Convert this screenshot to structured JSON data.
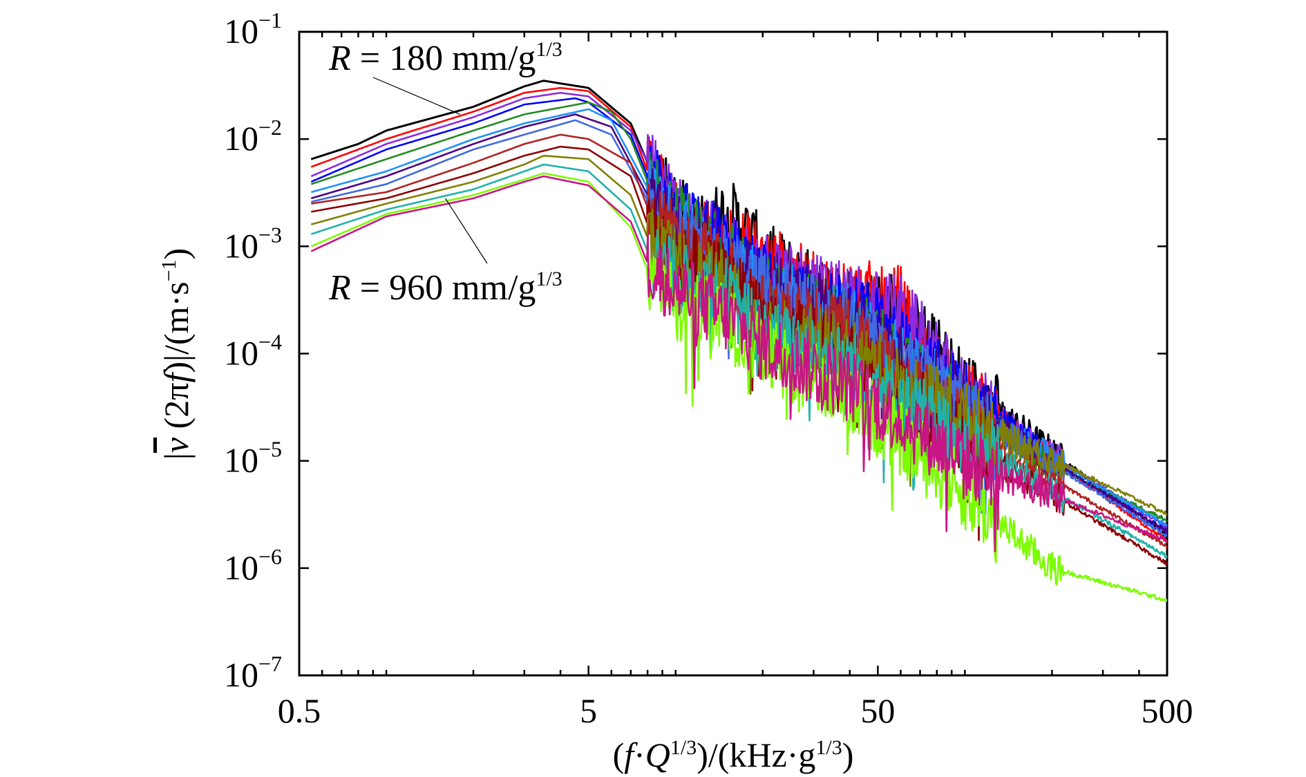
{
  "chart_data": {
    "type": "line",
    "title": "",
    "xlabel": {
      "open": "(",
      "f": "f",
      "dot": "·",
      "Q": "Q",
      "exp1": "1/3",
      "mid": ")/(kHz·g",
      "exp2": "1/3",
      "close": ")"
    },
    "ylabel": {
      "bar_left": "|",
      "v": "v",
      "mid": " (2π",
      "f": "f",
      "mid2": ")|/(m·s",
      "exp": "−1",
      "close": ")"
    },
    "xscale": "log",
    "yscale": "log",
    "xlim": [
      0.5,
      500
    ],
    "ylim": [
      1e-07,
      0.1
    ],
    "x_ticks": [
      {
        "value": 0.5,
        "label": "0.5"
      },
      {
        "value": 5,
        "label": "5"
      },
      {
        "value": 50,
        "label": "50"
      },
      {
        "value": 500,
        "label": "500"
      }
    ],
    "y_ticks": [
      {
        "value": 1e-07,
        "base": "10",
        "exp": "−7"
      },
      {
        "value": 1e-06,
        "base": "10",
        "exp": "−6"
      },
      {
        "value": 1e-05,
        "base": "10",
        "exp": "−5"
      },
      {
        "value": 0.0001,
        "base": "10",
        "exp": "−4"
      },
      {
        "value": 0.001,
        "base": "10",
        "exp": "−3"
      },
      {
        "value": 0.01,
        "base": "10",
        "exp": "−2"
      },
      {
        "value": 0.1,
        "base": "10",
        "exp": "−1"
      }
    ],
    "grid": false,
    "annotations": [
      {
        "R": "R",
        "text": " = 180 mm/g",
        "exp": "1/3",
        "points_to": {
          "x": 1.8,
          "y": 0.017
        }
      },
      {
        "R": "R",
        "text": " = 960 mm/g",
        "exp": "1/3",
        "points_to": {
          "x": 1.6,
          "y": 0.0028
        }
      }
    ],
    "series": [
      {
        "color": "#000000",
        "peak_x": 3.5,
        "peak_y": 0.035,
        "values": [
          [
            0.55,
            0.0065
          ],
          [
            0.8,
            0.009
          ],
          [
            1,
            0.012
          ],
          [
            2,
            0.02
          ],
          [
            3,
            0.031
          ],
          [
            3.5,
            0.035
          ],
          [
            4,
            0.033
          ],
          [
            5,
            0.03
          ],
          [
            7,
            0.014
          ],
          [
            8,
            0.006
          ],
          [
            10,
            0.0025
          ],
          [
            12,
            0.0013
          ],
          [
            15,
            0.0021
          ],
          [
            18,
            0.0012
          ],
          [
            20,
            0.0008
          ],
          [
            30,
            0.0004
          ],
          [
            40,
            0.0003
          ],
          [
            60,
            0.00025
          ],
          [
            70,
            0.00015
          ],
          [
            100,
            5e-05
          ],
          [
            200,
            1.2e-05
          ],
          [
            500,
            2e-06
          ]
        ]
      },
      {
        "color": "#ff0000",
        "peak_x": 4,
        "peak_y": 0.03,
        "values": [
          [
            0.55,
            0.0055
          ],
          [
            1,
            0.01
          ],
          [
            2,
            0.018
          ],
          [
            3,
            0.027
          ],
          [
            4,
            0.03
          ],
          [
            5,
            0.028
          ],
          [
            7,
            0.013
          ],
          [
            8,
            0.005
          ],
          [
            10,
            0.0022
          ],
          [
            12,
            0.0012
          ],
          [
            15,
            0.0012
          ],
          [
            20,
            0.0008
          ],
          [
            30,
            0.0004
          ],
          [
            40,
            0.00035
          ],
          [
            60,
            0.0003
          ],
          [
            70,
            0.0001
          ],
          [
            100,
            4e-05
          ],
          [
            200,
            1e-05
          ],
          [
            500,
            1.8e-06
          ]
        ]
      },
      {
        "color": "#8a2be2",
        "peak_x": 4,
        "peak_y": 0.027,
        "values": [
          [
            0.55,
            0.0045
          ],
          [
            1,
            0.009
          ],
          [
            2,
            0.016
          ],
          [
            3,
            0.024
          ],
          [
            4,
            0.027
          ],
          [
            5,
            0.025
          ],
          [
            7,
            0.012
          ],
          [
            10,
            0.002
          ],
          [
            15,
            0.001
          ],
          [
            20,
            0.0006
          ],
          [
            40,
            0.0003
          ],
          [
            60,
            0.00025
          ],
          [
            100,
            4e-05
          ],
          [
            200,
            1.1e-05
          ],
          [
            500,
            2.4e-06
          ]
        ]
      },
      {
        "color": "#0000ff",
        "peak_x": 4.5,
        "peak_y": 0.024,
        "values": [
          [
            0.55,
            0.004
          ],
          [
            1,
            0.008
          ],
          [
            2,
            0.014
          ],
          [
            3,
            0.021
          ],
          [
            4.5,
            0.024
          ],
          [
            5,
            0.022
          ],
          [
            7,
            0.011
          ],
          [
            8,
            0.0045
          ],
          [
            10,
            0.0022
          ],
          [
            15,
            0.001
          ],
          [
            20,
            0.0005
          ],
          [
            30,
            0.0003
          ],
          [
            50,
            0.0002
          ],
          [
            70,
            8e-05
          ],
          [
            100,
            4e-05
          ],
          [
            200,
            1e-05
          ],
          [
            500,
            2.2e-06
          ]
        ]
      },
      {
        "color": "#228b22",
        "peak_x": 5,
        "peak_y": 0.022,
        "values": [
          [
            0.55,
            0.0038
          ],
          [
            1,
            0.0065
          ],
          [
            2,
            0.012
          ],
          [
            3,
            0.017
          ],
          [
            5,
            0.022
          ],
          [
            6,
            0.018
          ],
          [
            7,
            0.01
          ],
          [
            8,
            0.004
          ],
          [
            10,
            0.0018
          ],
          [
            15,
            0.0008
          ],
          [
            20,
            0.0004
          ],
          [
            40,
            0.0002
          ],
          [
            100,
            3e-05
          ],
          [
            200,
            9e-06
          ],
          [
            500,
            2.8e-06
          ]
        ]
      },
      {
        "color": "#1e90ff",
        "peak_x": 5,
        "peak_y": 0.019,
        "values": [
          [
            0.55,
            0.0032
          ],
          [
            1,
            0.005
          ],
          [
            2,
            0.01
          ],
          [
            3,
            0.014
          ],
          [
            5,
            0.019
          ],
          [
            6,
            0.015
          ],
          [
            8,
            0.0035
          ],
          [
            10,
            0.0015
          ],
          [
            15,
            0.0008
          ],
          [
            20,
            0.0004
          ],
          [
            40,
            0.0002
          ],
          [
            100,
            3e-05
          ],
          [
            500,
            2.5e-06
          ]
        ]
      },
      {
        "color": "#4b0082",
        "peak_x": 4.5,
        "peak_y": 0.017,
        "values": [
          [
            0.55,
            0.0028
          ],
          [
            1,
            0.0045
          ],
          [
            2,
            0.009
          ],
          [
            3,
            0.013
          ],
          [
            4.5,
            0.017
          ],
          [
            6,
            0.013
          ],
          [
            8,
            0.003
          ],
          [
            10,
            0.0014
          ],
          [
            15,
            0.0007
          ],
          [
            20,
            0.0004
          ],
          [
            40,
            0.0002
          ],
          [
            100,
            3e-05
          ],
          [
            500,
            2.2e-06
          ]
        ]
      },
      {
        "color": "#4169e1",
        "peak_x": 4.5,
        "peak_y": 0.015,
        "values": [
          [
            0.55,
            0.0026
          ],
          [
            1,
            0.0038
          ],
          [
            2,
            0.008
          ],
          [
            3,
            0.011
          ],
          [
            4.5,
            0.015
          ],
          [
            6,
            0.011
          ],
          [
            8,
            0.0027
          ],
          [
            10,
            0.0012
          ],
          [
            15,
            0.0007
          ],
          [
            20,
            0.0004
          ],
          [
            40,
            0.00018
          ],
          [
            100,
            3e-05
          ],
          [
            500,
            2e-06
          ]
        ]
      },
      {
        "color": "#b22222",
        "peak_x": 4,
        "peak_y": 0.011,
        "values": [
          [
            0.55,
            0.0025
          ],
          [
            1,
            0.0032
          ],
          [
            2,
            0.006
          ],
          [
            3,
            0.009
          ],
          [
            4,
            0.011
          ],
          [
            5,
            0.01
          ],
          [
            7,
            0.006
          ],
          [
            8,
            0.0023
          ],
          [
            10,
            0.0011
          ],
          [
            15,
            0.0006
          ],
          [
            20,
            0.00025
          ],
          [
            40,
            0.00015
          ],
          [
            100,
            2e-05
          ],
          [
            500,
            1.6e-06
          ]
        ]
      },
      {
        "color": "#8b0000",
        "peak_x": 4,
        "peak_y": 0.0085,
        "values": [
          [
            0.55,
            0.0021
          ],
          [
            1,
            0.0028
          ],
          [
            2,
            0.0048
          ],
          [
            3,
            0.007
          ],
          [
            4,
            0.0085
          ],
          [
            5,
            0.008
          ],
          [
            7,
            0.0045
          ],
          [
            8,
            0.0016
          ],
          [
            10,
            0.0008
          ],
          [
            15,
            0.0005
          ],
          [
            20,
            0.0002
          ],
          [
            40,
            0.0001
          ],
          [
            100,
            1.5e-05
          ],
          [
            500,
            1.1e-06
          ]
        ]
      },
      {
        "color": "#808000",
        "peak_x": 3.5,
        "peak_y": 0.007,
        "values": [
          [
            0.55,
            0.0016
          ],
          [
            1,
            0.0025
          ],
          [
            2,
            0.004
          ],
          [
            3,
            0.0058
          ],
          [
            3.5,
            0.007
          ],
          [
            5,
            0.0065
          ],
          [
            7,
            0.003
          ],
          [
            8,
            0.0012
          ],
          [
            10,
            0.0007
          ],
          [
            15,
            0.0004
          ],
          [
            20,
            0.00018
          ],
          [
            40,
            0.0001
          ],
          [
            100,
            2.5e-05
          ],
          [
            500,
            3.2e-06
          ]
        ]
      },
      {
        "color": "#20b2aa",
        "peak_x": 3.5,
        "peak_y": 0.0058,
        "values": [
          [
            0.55,
            0.0013
          ],
          [
            1,
            0.0022
          ],
          [
            2,
            0.0034
          ],
          [
            3,
            0.005
          ],
          [
            3.5,
            0.0058
          ],
          [
            5,
            0.005
          ],
          [
            7,
            0.0022
          ],
          [
            8,
            0.0009
          ],
          [
            10,
            0.0005
          ],
          [
            15,
            0.00035
          ],
          [
            20,
            0.00015
          ],
          [
            40,
            8e-05
          ],
          [
            100,
            1.5e-05
          ],
          [
            500,
            1.3e-06
          ]
        ]
      },
      {
        "color": "#7cfc00",
        "peak_x": 3.5,
        "peak_y": 0.0048,
        "values": [
          [
            0.55,
            0.001
          ],
          [
            1,
            0.002
          ],
          [
            2,
            0.003
          ],
          [
            3,
            0.0042
          ],
          [
            3.5,
            0.0048
          ],
          [
            5,
            0.004
          ],
          [
            7,
            0.0015
          ],
          [
            8,
            0.0006
          ],
          [
            10,
            0.0003
          ],
          [
            15,
            0.0002
          ],
          [
            20,
            0.0001
          ],
          [
            40,
            4e-05
          ],
          [
            100,
            5e-06
          ],
          [
            200,
            1e-06
          ],
          [
            500,
            5e-07
          ]
        ]
      },
      {
        "color": "#c71585",
        "peak_x": 3.5,
        "peak_y": 0.0045,
        "values": [
          [
            0.55,
            0.0009
          ],
          [
            1,
            0.0019
          ],
          [
            2,
            0.0028
          ],
          [
            3,
            0.004
          ],
          [
            3.5,
            0.0045
          ],
          [
            5,
            0.0037
          ],
          [
            7,
            0.0017
          ],
          [
            8,
            0.0007
          ],
          [
            10,
            0.0004
          ],
          [
            15,
            0.00022
          ],
          [
            20,
            0.00012
          ],
          [
            40,
            5e-05
          ],
          [
            100,
            1e-05
          ],
          [
            500,
            1.8e-06
          ]
        ]
      }
    ]
  }
}
